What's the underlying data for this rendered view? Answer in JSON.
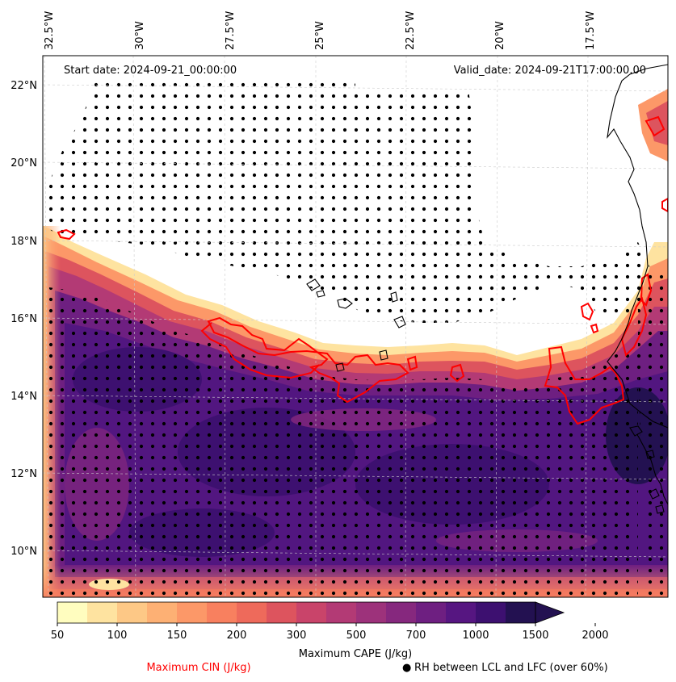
{
  "map": {
    "start_date": "Start date: 2024-09-21_00:00:00",
    "valid_date": "Valid_date: 2024-09-21T17:00:00.00",
    "lon_labels": [
      "32.5°W",
      "30°W",
      "27.5°W",
      "25°W",
      "22.5°W",
      "20°W",
      "17.5°W"
    ],
    "lat_labels": [
      "22°N",
      "20°N",
      "18°N",
      "16°N",
      "14°N",
      "12°N",
      "10°N"
    ],
    "colors": {
      "cin_contour": "#ff0000",
      "coast": "#000000",
      "stipple": "#000000"
    }
  },
  "colorbar": {
    "ticks": [
      "50",
      "100",
      "150",
      "200",
      "300",
      "500",
      "700",
      "1000",
      "1500",
      "2000"
    ],
    "label": "Maximum CAPE (J/kg)",
    "colors": [
      "#fffdbf",
      "#fee3a0",
      "#fdc886",
      "#fdb074",
      "#fc9868",
      "#f8805f",
      "#ee6a5b",
      "#dd545e",
      "#c9446a",
      "#b33a75",
      "#9d327b",
      "#86287e",
      "#6e1f81",
      "#561681",
      "#3d1070",
      "#231151"
    ]
  },
  "legend": {
    "cin_label": "Maximum CIN (J/kg)",
    "rh_label": "RH between LCL and LFC (over 60%)",
    "rh_marker": "●"
  }
}
